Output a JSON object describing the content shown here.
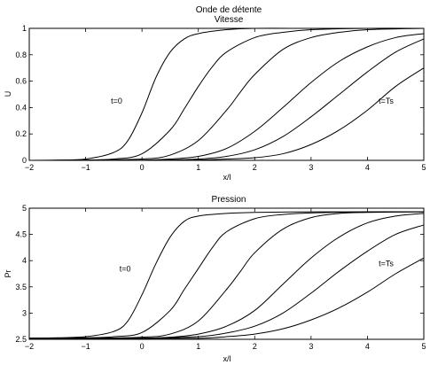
{
  "figure_title": "Onde de détente",
  "chart_data": [
    {
      "type": "line",
      "title": "Vitesse",
      "xlabel": "x/l",
      "ylabel": "U",
      "xlim": [
        -2,
        5
      ],
      "ylim": [
        0,
        1
      ],
      "xticks": [
        "−2",
        "−1",
        "0",
        "1",
        "2",
        "3",
        "4",
        "5"
      ],
      "yticks": [
        "0",
        "0.2",
        "0.4",
        "0.6",
        "0.8",
        "1"
      ],
      "annotations": [
        {
          "text": "t=0",
          "x": -0.55,
          "y": 0.43
        },
        {
          "text": "t=Ts",
          "x": 4.2,
          "y": 0.43
        }
      ],
      "grid": false,
      "series": [
        {
          "x": [
            -2,
            -1.5,
            -1,
            -0.5,
            -0.25,
            0,
            0.25,
            0.5,
            0.75,
            1,
            1.5,
            2,
            3,
            4,
            5
          ],
          "y": [
            0,
            0.002,
            0.01,
            0.06,
            0.15,
            0.36,
            0.63,
            0.82,
            0.92,
            0.96,
            0.99,
            1,
            1,
            1,
            1
          ]
        },
        {
          "x": [
            -2,
            -1,
            -0.5,
            0,
            0.5,
            0.75,
            1,
            1.25,
            1.5,
            2,
            2.5,
            3,
            4,
            5
          ],
          "y": [
            0,
            0.003,
            0.01,
            0.05,
            0.23,
            0.39,
            0.56,
            0.71,
            0.82,
            0.93,
            0.97,
            0.99,
            1,
            1
          ]
        },
        {
          "x": [
            -2,
            -1,
            0,
            0.5,
            1,
            1.5,
            1.75,
            2,
            2.5,
            3,
            3.5,
            4,
            5
          ],
          "y": [
            0,
            0.002,
            0.01,
            0.04,
            0.15,
            0.38,
            0.52,
            0.65,
            0.84,
            0.93,
            0.97,
            0.99,
            1
          ]
        },
        {
          "x": [
            -2,
            -1,
            0,
            0.5,
            1,
            1.5,
            2,
            2.5,
            3,
            3.5,
            4,
            4.5,
            5
          ],
          "y": [
            0,
            0,
            0.002,
            0.01,
            0.03,
            0.09,
            0.22,
            0.4,
            0.59,
            0.75,
            0.86,
            0.93,
            0.96
          ]
        },
        {
          "x": [
            -2,
            -1,
            0,
            0.5,
            1,
            1.5,
            2,
            2.5,
            3,
            3.5,
            4,
            4.5,
            5
          ],
          "y": [
            0,
            0,
            0,
            0.003,
            0.01,
            0.03,
            0.08,
            0.18,
            0.33,
            0.5,
            0.67,
            0.82,
            0.92
          ]
        },
        {
          "x": [
            -2,
            -1,
            0,
            1,
            1.5,
            2,
            2.5,
            3,
            3.5,
            4,
            4.5,
            5
          ],
          "y": [
            0,
            0,
            0,
            0.003,
            0.01,
            0.02,
            0.05,
            0.12,
            0.23,
            0.38,
            0.56,
            0.7
          ]
        }
      ]
    },
    {
      "type": "line",
      "title": "Pression",
      "xlabel": "x/l",
      "ylabel": "Pr",
      "xlim": [
        -2,
        5
      ],
      "ylim": [
        2.5,
        5
      ],
      "xticks": [
        "−2",
        "−1",
        "0",
        "1",
        "2",
        "3",
        "4",
        "5"
      ],
      "yticks": [
        "2.5",
        "3",
        "3.5",
        "4",
        "4.5",
        "5"
      ],
      "annotations": [
        {
          "text": "t=0",
          "x": -0.4,
          "y": 3.79
        },
        {
          "text": "t=Ts",
          "x": 4.2,
          "y": 3.89
        }
      ],
      "grid": false,
      "series": [
        {
          "x": [
            -2,
            -1.5,
            -1,
            -0.5,
            -0.25,
            0,
            0.25,
            0.5,
            0.75,
            1,
            1.5,
            2,
            3,
            4,
            5
          ],
          "y": [
            2.52,
            2.53,
            2.55,
            2.65,
            2.85,
            3.35,
            3.95,
            4.45,
            4.75,
            4.85,
            4.9,
            4.92,
            4.93,
            4.93,
            4.93
          ]
        },
        {
          "x": [
            -2,
            -1,
            -0.5,
            0,
            0.5,
            0.75,
            1,
            1.25,
            1.5,
            2,
            2.5,
            3,
            4,
            5
          ],
          "y": [
            2.52,
            2.53,
            2.55,
            2.63,
            3.05,
            3.45,
            3.85,
            4.25,
            4.55,
            4.8,
            4.88,
            4.91,
            4.93,
            4.93
          ]
        },
        {
          "x": [
            -2,
            -1,
            0,
            0.5,
            1,
            1.5,
            1.75,
            2,
            2.5,
            3,
            3.5,
            4,
            5
          ],
          "y": [
            2.52,
            2.52,
            2.54,
            2.6,
            2.85,
            3.45,
            3.8,
            4.15,
            4.6,
            4.82,
            4.9,
            4.92,
            4.93
          ]
        },
        {
          "x": [
            -2,
            -1,
            0,
            0.5,
            1,
            1.5,
            2,
            2.5,
            3,
            3.5,
            4,
            4.5,
            5
          ],
          "y": [
            2.52,
            2.52,
            2.52,
            2.54,
            2.6,
            2.75,
            3.05,
            3.55,
            4.05,
            4.45,
            4.72,
            4.85,
            4.9
          ]
        },
        {
          "x": [
            -2,
            -1,
            0,
            1,
            1.5,
            2,
            2.5,
            3,
            3.5,
            4,
            4.5,
            5
          ],
          "y": [
            2.52,
            2.52,
            2.52,
            2.55,
            2.62,
            2.75,
            3.0,
            3.38,
            3.8,
            4.18,
            4.5,
            4.68
          ]
        },
        {
          "x": [
            -2,
            -1,
            0,
            1,
            1.5,
            2,
            2.5,
            3,
            3.5,
            4,
            4.5,
            5
          ],
          "y": [
            2.52,
            2.52,
            2.52,
            2.52,
            2.55,
            2.6,
            2.7,
            2.87,
            3.1,
            3.4,
            3.75,
            4.05
          ]
        }
      ]
    }
  ]
}
